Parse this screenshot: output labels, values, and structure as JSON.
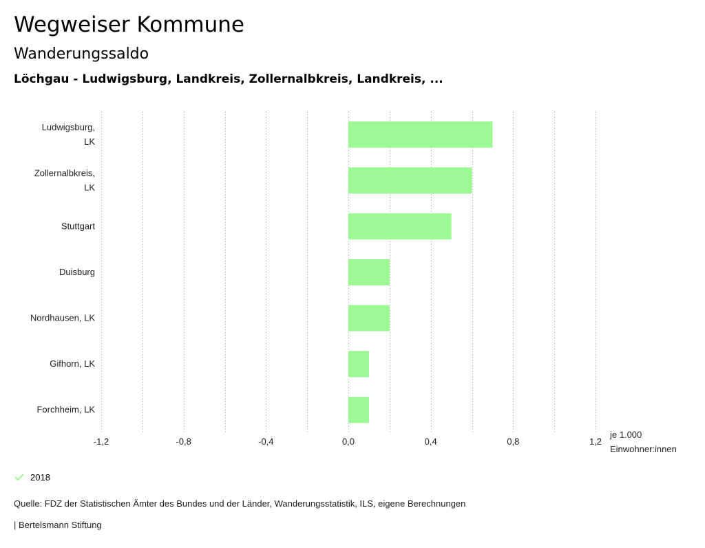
{
  "header": {
    "title": "Wegweiser Kommune",
    "subtitle": "Wanderungssaldo",
    "regions": "Löchgau - Ludwigsburg, Landkreis, Zollernalbkreis, Landkreis, ..."
  },
  "chart_data": {
    "type": "bar",
    "orientation": "horizontal",
    "categories": [
      [
        "Ludwigsburg,",
        "LK"
      ],
      [
        "Zollernalbkreis,",
        "LK"
      ],
      [
        "Stuttgart"
      ],
      [
        "Duisburg"
      ],
      [
        "Nordhausen, LK"
      ],
      [
        "Gifhorn, LK"
      ],
      [
        "Forchheim, LK"
      ]
    ],
    "series": [
      {
        "name": "2018",
        "values": [
          0.7,
          0.6,
          0.5,
          0.2,
          0.2,
          0.1,
          0.1
        ]
      }
    ],
    "xlim": [
      -1.2,
      1.2
    ],
    "ticks": [
      -1.2,
      -0.8,
      -0.4,
      0.0,
      0.4,
      0.8,
      1.2
    ],
    "tick_labels": [
      "-1,2",
      "-0,8",
      "-0,4",
      "0,0",
      "0,4",
      "0,8",
      "1,2"
    ],
    "xlabel": [
      "je 1.000",
      "Einwohner:innen"
    ],
    "grid": true,
    "bar_color": "#9cf994"
  },
  "legend": {
    "label": "2018",
    "color": "#9cf994"
  },
  "footer": {
    "source": "Quelle: FDZ der Statistischen Ämter des Bundes und der Länder, Wanderungsstatistik, ILS, eigene Berechnungen",
    "brand": "| Bertelsmann Stiftung"
  }
}
